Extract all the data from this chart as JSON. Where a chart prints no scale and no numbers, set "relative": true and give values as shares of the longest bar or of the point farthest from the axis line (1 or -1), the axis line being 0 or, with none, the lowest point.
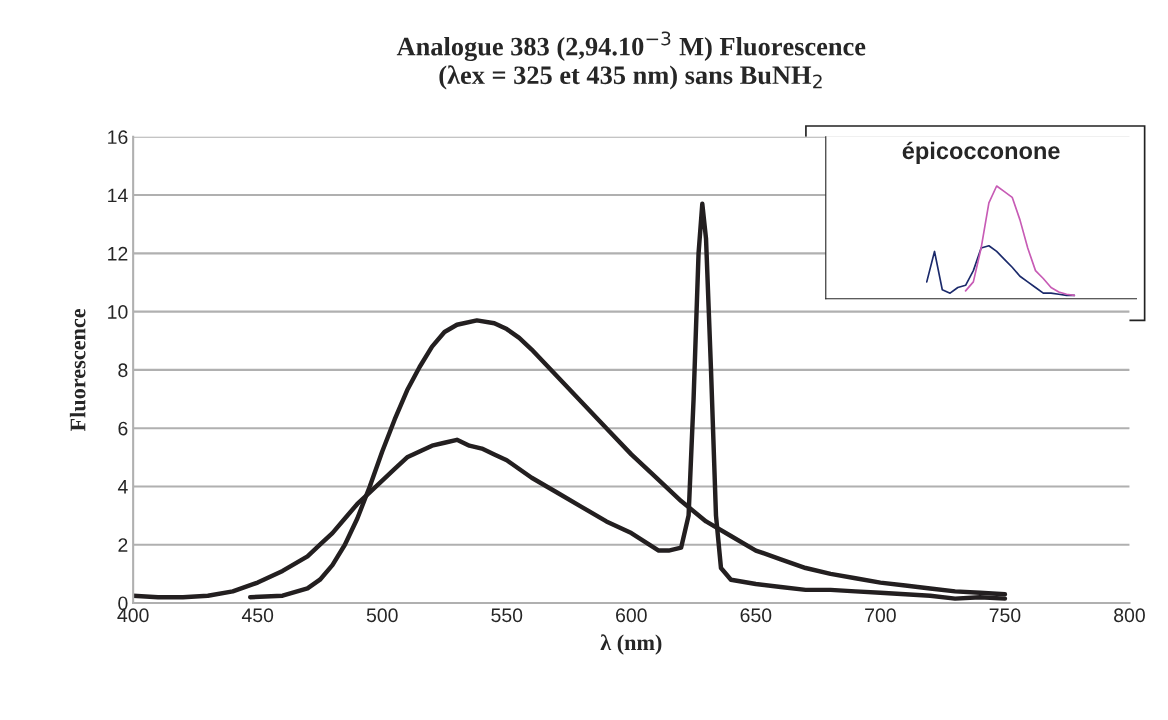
{
  "chart_data": [
    {
      "type": "line",
      "title": "Analogue 383 (2,94.10$^{−3}$ M) Fluorescence\n(λex = 325 et 435 nm) sans BuNH$_{2}$",
      "xlabel": "λ (nm)",
      "ylabel": "Fluorescence",
      "xlim": [
        400,
        800
      ],
      "xticks": [
        400,
        450,
        500,
        550,
        600,
        650,
        700,
        750,
        800
      ],
      "ylim": [
        0,
        16
      ],
      "yticks": [
        0,
        2,
        4,
        6,
        8,
        10,
        12,
        14,
        16
      ],
      "grid": "y",
      "marker": "none",
      "line_style": "solid",
      "series": [
        {
          "color": "#231f20",
          "x": [
            400,
            410,
            420,
            430,
            440,
            450,
            460,
            470,
            475,
            480,
            485,
            490,
            495,
            500,
            505,
            510,
            515,
            520,
            525,
            530,
            535,
            540,
            545,
            550,
            555,
            560,
            570,
            580,
            590,
            600,
            611,
            615,
            620,
            623,
            625,
            627,
            628.5,
            630,
            632,
            634,
            636,
            640,
            650,
            660,
            670,
            680,
            690,
            700,
            710,
            720,
            730,
            740,
            750
          ],
          "values": [
            0.25,
            0.2,
            0.2,
            0.25,
            0.4,
            0.7,
            1.1,
            1.6,
            2.0,
            2.4,
            2.9,
            3.4,
            3.8,
            4.2,
            4.6,
            5.0,
            5.2,
            5.4,
            5.5,
            5.6,
            5.4,
            5.3,
            5.1,
            4.9,
            4.6,
            4.3,
            3.8,
            3.3,
            2.8,
            2.4,
            1.8,
            1.8,
            1.9,
            3.0,
            7.0,
            12.0,
            13.7,
            12.5,
            8.0,
            3.0,
            1.2,
            0.8,
            0.65,
            0.55,
            0.45,
            0.45,
            0.4,
            0.35,
            0.3,
            0.25,
            0.15,
            0.2,
            0.15
          ]
        },
        {
          "color": "#231f20",
          "x": [
            447,
            460,
            470,
            475,
            480,
            485,
            490,
            495,
            500,
            505,
            510,
            515,
            520,
            525,
            530,
            538,
            545,
            550,
            555,
            560,
            570,
            580,
            590,
            600,
            610,
            620,
            630,
            640,
            650,
            660,
            670,
            680,
            690,
            700,
            710,
            720,
            730,
            740,
            750
          ],
          "values": [
            0.2,
            0.25,
            0.5,
            0.8,
            1.3,
            2.0,
            2.9,
            4.0,
            5.2,
            6.3,
            7.3,
            8.1,
            8.8,
            9.3,
            9.55,
            9.7,
            9.6,
            9.4,
            9.1,
            8.7,
            7.8,
            6.9,
            6.0,
            5.1,
            4.3,
            3.5,
            2.8,
            2.3,
            1.8,
            1.5,
            1.2,
            1.0,
            0.85,
            0.7,
            0.6,
            0.5,
            0.4,
            0.35,
            0.3
          ]
        }
      ]
    },
    {
      "type": "line",
      "title": "épicocconone",
      "relative": true,
      "marker": "none",
      "line_style": "solid",
      "categories": [
        null,
        null,
        null,
        null,
        null,
        null,
        null,
        null,
        null,
        null,
        null,
        null,
        null,
        null,
        null,
        null,
        null,
        null,
        null,
        null,
        null,
        null,
        null,
        null,
        null,
        null,
        null,
        null,
        null,
        null,
        null,
        null,
        null,
        null,
        null,
        null,
        null,
        null,
        null,
        null,
        null
      ],
      "series": [
        {
          "color": "#1b2a6b",
          "values": [
            null,
            null,
            null,
            null,
            null,
            null,
            null,
            null,
            null,
            null,
            null,
            null,
            null,
            0.15,
            0.42,
            0.08,
            0.05,
            0.1,
            0.12,
            0.25,
            0.45,
            0.47,
            0.42,
            0.35,
            0.28,
            0.2,
            0.15,
            0.1,
            0.05,
            0.05,
            0.04,
            0.03,
            0.03,
            null,
            null,
            null,
            null,
            null,
            null,
            null,
            null
          ]
        },
        {
          "color": "#c75bb5",
          "values": [
            null,
            null,
            null,
            null,
            null,
            null,
            null,
            null,
            null,
            null,
            null,
            null,
            null,
            null,
            null,
            null,
            null,
            null,
            0.07,
            0.15,
            0.45,
            0.85,
            1.0,
            0.95,
            0.9,
            0.7,
            0.45,
            0.25,
            0.18,
            0.1,
            0.06,
            0.04,
            0.03,
            null,
            null,
            null,
            null,
            null,
            null,
            null,
            null
          ]
        }
      ]
    }
  ]
}
